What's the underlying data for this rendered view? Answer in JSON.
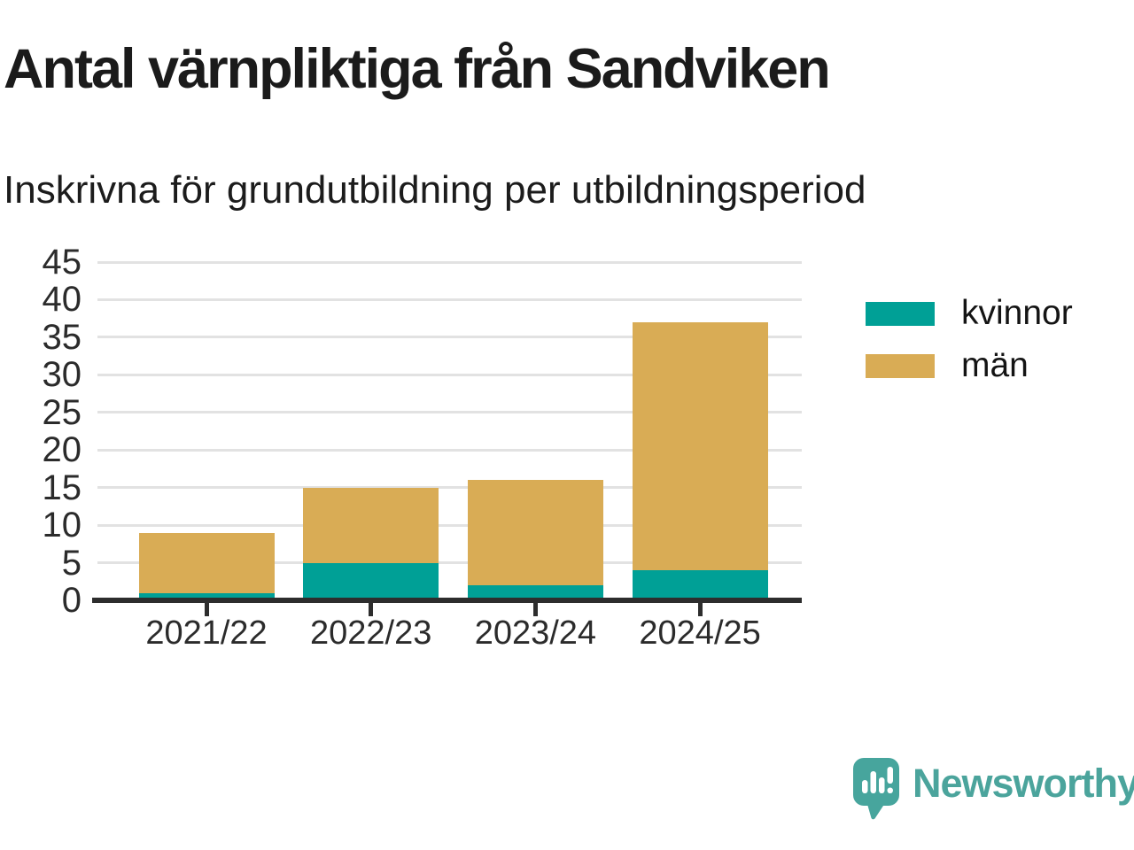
{
  "title": "Antal värnpliktiga från Sandviken",
  "subtitle": "Inskrivna för grundutbildning per utbildningsperiod",
  "chart_data": {
    "type": "bar",
    "stacked": true,
    "title": "Antal värnpliktiga från Sandviken",
    "subtitle": "Inskrivna för grundutbildning per utbildningsperiod",
    "categories": [
      "2021/22",
      "2022/23",
      "2023/24",
      "2024/25"
    ],
    "series": [
      {
        "name": "kvinnor",
        "color": "#00a096",
        "values": [
          1,
          5,
          2,
          4
        ]
      },
      {
        "name": "män",
        "color": "#d9ac55",
        "values": [
          8,
          10,
          14,
          33
        ]
      }
    ],
    "totals": [
      9,
      15,
      16,
      37
    ],
    "xlabel": "",
    "ylabel": "",
    "ylim": [
      0,
      45
    ],
    "yticks": [
      0,
      5,
      10,
      15,
      20,
      25,
      30,
      35,
      40,
      45
    ],
    "grid": true,
    "legend_position": "right-top"
  },
  "colors": {
    "axis": "#2d2d2d",
    "grid": "#e2e2e2",
    "text": "#1c1c1c",
    "brand": "#4ba49c"
  },
  "footer": {
    "brand": "Newsworthy",
    "logo_icon": "bar-chart-speech-bubble-icon"
  }
}
